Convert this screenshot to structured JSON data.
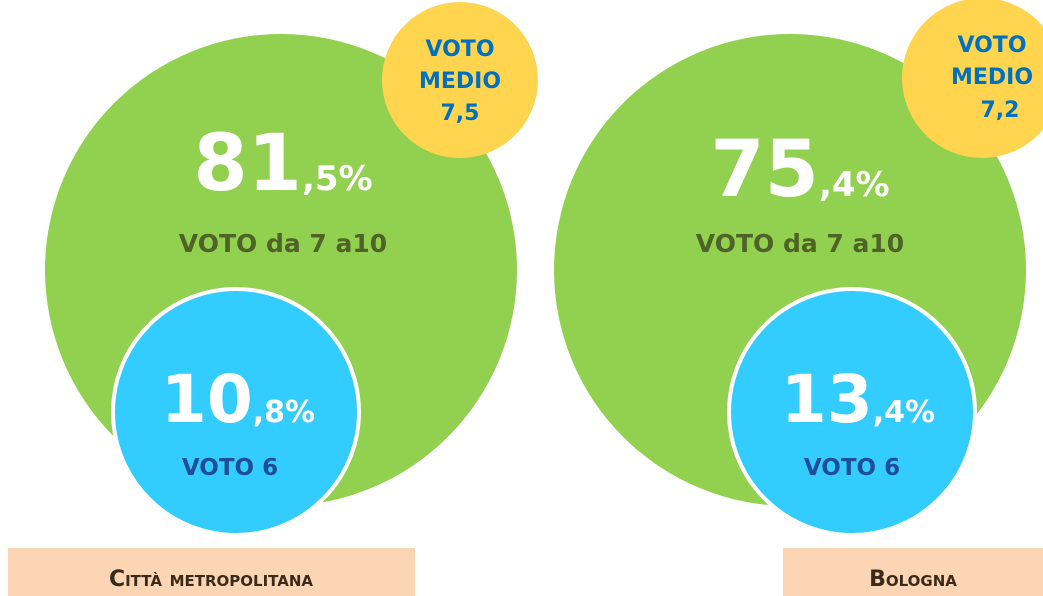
{
  "panels": [
    {
      "place": "Città metropolitana",
      "average": {
        "line1": "VOTO",
        "line2": "MEDIO",
        "value": "7,5"
      },
      "green": {
        "int": "81",
        "dec": ",5%",
        "label": "VOTO da 7 a10"
      },
      "blue": {
        "int": "10",
        "dec": ",8%",
        "label": "VOTO 6"
      }
    },
    {
      "place": "Bologna",
      "average": {
        "line1": "VOTO",
        "line2": "MEDIO",
        "value": "7,2"
      },
      "green": {
        "int": "75",
        "dec": ",4%",
        "label": "VOTO da 7 a10"
      },
      "blue": {
        "int": "13",
        "dec": ",4%",
        "label": "VOTO 6"
      }
    }
  ]
}
